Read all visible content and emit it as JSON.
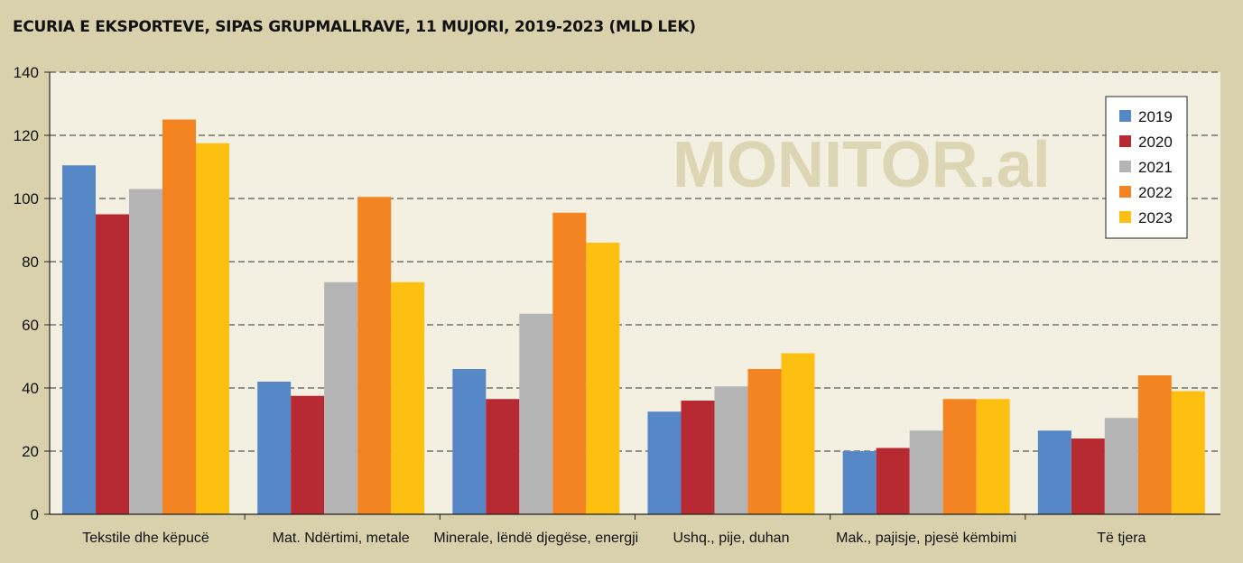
{
  "title": "ECURIA E EKSPORTEVE, SIPAS GRUPMALLRAVE, 11 MUJORI, 2019-2023 (MLD LEK)",
  "watermark": "MONITOR.al",
  "colors": {
    "background": "#d9d1ac",
    "plot_background": "#f3f0e1",
    "2019": "#5688c7",
    "2020": "#b82a32",
    "2021": "#b4b4b4",
    "2022": "#f38421",
    "2023": "#fdc010"
  },
  "chart_data": {
    "type": "bar",
    "title": "ECURIA E EKSPORTEVE, SIPAS GRUPMALLRAVE, 11 MUJORI, 2019-2023 (MLD LEK)",
    "xlabel": "",
    "ylabel": "",
    "ylim": [
      0,
      140
    ],
    "yticks": [
      0,
      20,
      40,
      60,
      80,
      100,
      120,
      140
    ],
    "grid": true,
    "legend_position": "top-right",
    "categories": [
      "Tekstile dhe këpucë",
      "Mat. Ndërtimi, metale",
      "Minerale, lëndë djegëse, energji",
      "Ushq., pije, duhan",
      "Mak., pajisje, pjesë këmbimi",
      "Të tjera"
    ],
    "series": [
      {
        "name": "2019",
        "values": [
          110.5,
          42,
          46,
          32.5,
          20,
          26.5
        ]
      },
      {
        "name": "2020",
        "values": [
          95,
          37.5,
          36.5,
          36,
          21,
          24
        ]
      },
      {
        "name": "2021",
        "values": [
          103,
          73.5,
          63.5,
          40.5,
          26.5,
          30.5
        ]
      },
      {
        "name": "2022",
        "values": [
          125,
          100.5,
          95.5,
          46,
          36.5,
          44
        ]
      },
      {
        "name": "2023",
        "values": [
          117.5,
          73.5,
          86,
          51,
          36.5,
          39
        ]
      }
    ]
  }
}
